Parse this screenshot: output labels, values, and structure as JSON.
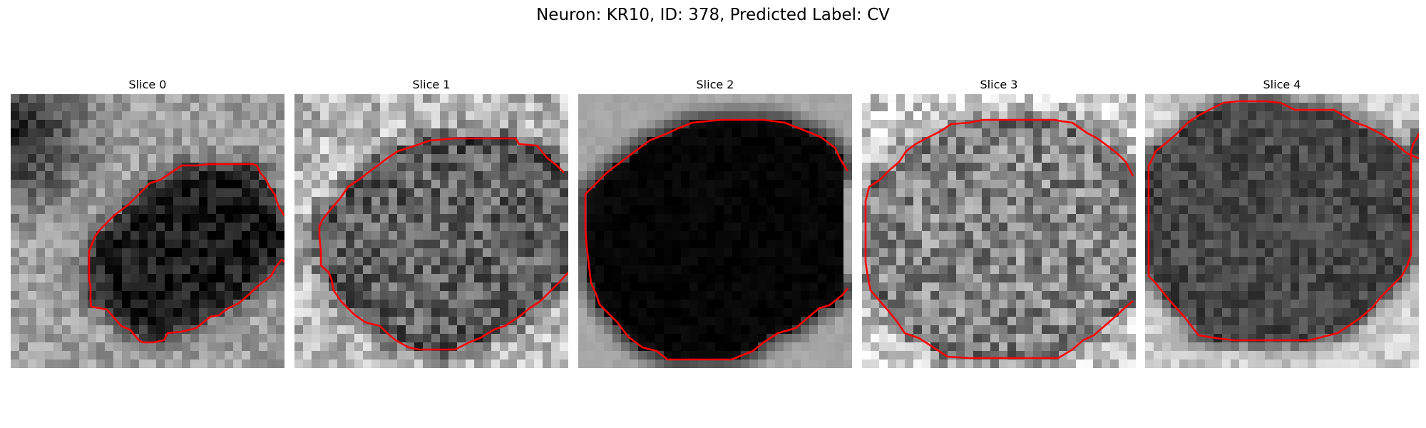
{
  "figure": {
    "title": "Neuron: KR10, ID: 378, Predicted Label: CV",
    "contour_color": "#ff0000",
    "colormap": "gray",
    "panels": [
      {
        "title": "Slice 0",
        "brightness": {
          "background": 0.62,
          "interior": 0.1,
          "ring": 0.32,
          "noise": 0.14,
          "dark_corner": "top-left"
        }
      },
      {
        "title": "Slice 1",
        "brightness": {
          "background": 0.72,
          "interior": 0.38,
          "ring": 0.22,
          "noise": 0.22
        }
      },
      {
        "title": "Slice 2",
        "brightness": {
          "background": 0.65,
          "interior": 0.02,
          "ring": 0.05,
          "noise": 0.03
        }
      },
      {
        "title": "Slice 3",
        "brightness": {
          "background": 0.82,
          "interior": 0.52,
          "ring": 0.4,
          "noise": 0.24
        }
      },
      {
        "title": "Slice 4",
        "brightness": {
          "background": 0.8,
          "interior": 0.28,
          "ring": 0.22,
          "noise": 0.12
        }
      }
    ]
  }
}
